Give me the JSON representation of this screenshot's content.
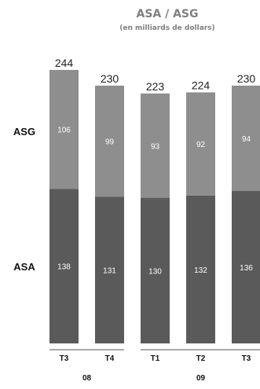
{
  "chart_data": {
    "type": "bar",
    "stacked": true,
    "title": "ASA / ASG",
    "subtitle": "(en milliards de dollars)",
    "categories": [
      "T3",
      "T4",
      "T1",
      "T2",
      "T3"
    ],
    "groups": [
      {
        "label": "08",
        "categories": [
          0,
          1
        ]
      },
      {
        "label": "09",
        "categories": [
          2,
          3,
          4
        ]
      }
    ],
    "series": [
      {
        "name": "ASA",
        "values": [
          138,
          131,
          130,
          132,
          136
        ],
        "color": "#5a5a5a"
      },
      {
        "name": "ASG",
        "values": [
          106,
          99,
          93,
          92,
          94
        ],
        "color": "#8e8e8e"
      }
    ],
    "totals": [
      244,
      230,
      223,
      224,
      230
    ],
    "colors": {
      "axis_line": "#aaaaaa"
    }
  }
}
